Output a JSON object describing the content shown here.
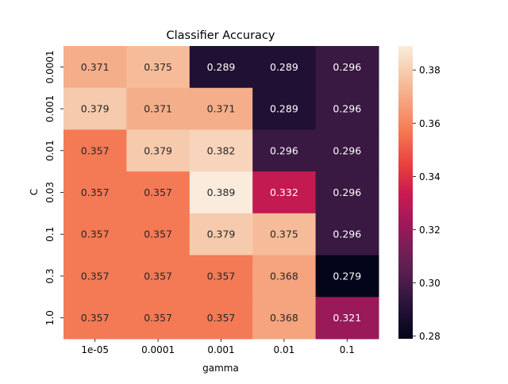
{
  "chart_data": {
    "type": "heatmap",
    "title": "Classifier Accuracy",
    "xlabel": "gamma",
    "ylabel": "C",
    "x_categories": [
      "1e-05",
      "0.0001",
      "0.001",
      "0.01",
      "0.1"
    ],
    "y_categories": [
      "0.0001",
      "0.001",
      "0.01",
      "0.03",
      "0.1",
      "0.3",
      "1.0"
    ],
    "values": [
      [
        0.371,
        0.375,
        0.289,
        0.289,
        0.296
      ],
      [
        0.379,
        0.371,
        0.371,
        0.289,
        0.296
      ],
      [
        0.357,
        0.379,
        0.382,
        0.296,
        0.296
      ],
      [
        0.357,
        0.357,
        0.389,
        0.332,
        0.296
      ],
      [
        0.357,
        0.357,
        0.379,
        0.375,
        0.296
      ],
      [
        0.357,
        0.357,
        0.357,
        0.368,
        0.279
      ],
      [
        0.357,
        0.357,
        0.357,
        0.368,
        0.321
      ]
    ],
    "value_labels": [
      [
        "0.371",
        "0.375",
        "0.289",
        "0.289",
        "0.296"
      ],
      [
        "0.379",
        "0.371",
        "0.371",
        "0.289",
        "0.296"
      ],
      [
        "0.357",
        "0.379",
        "0.382",
        "0.296",
        "0.296"
      ],
      [
        "0.357",
        "0.357",
        "0.389",
        "0.332",
        "0.296"
      ],
      [
        "0.357",
        "0.357",
        "0.379",
        "0.375",
        "0.296"
      ],
      [
        "0.357",
        "0.357",
        "0.357",
        "0.368",
        "0.279"
      ],
      [
        "0.357",
        "0.357",
        "0.357",
        "0.368",
        "0.321"
      ]
    ],
    "colormap": "rocket",
    "color_range": [
      0.279,
      0.389
    ],
    "colorbar_ticks": [
      0.28,
      0.3,
      0.32,
      0.34,
      0.36,
      0.38
    ],
    "colorbar_tick_labels": [
      "0.28",
      "0.30",
      "0.32",
      "0.34",
      "0.36",
      "0.38"
    ],
    "colorbar": "right",
    "annotated": true,
    "grid": false
  }
}
